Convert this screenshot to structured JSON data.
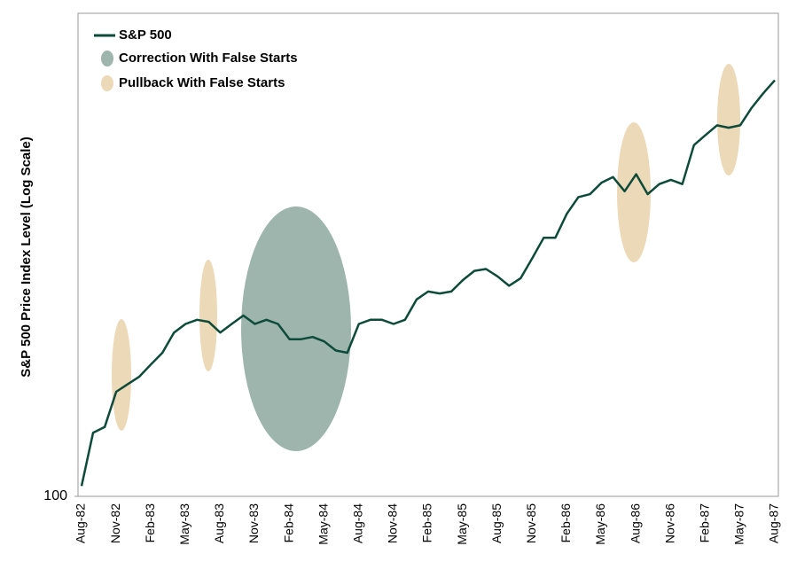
{
  "chart_data": {
    "type": "line",
    "log_scale": true,
    "y_label": "S&P 500 Price Index Level (Log Scale)",
    "categories": [
      "Aug-82",
      null,
      null,
      "Nov-82",
      null,
      null,
      "Feb-83",
      null,
      null,
      "May-83",
      null,
      null,
      "Aug-83",
      null,
      null,
      "Nov-83",
      null,
      null,
      "Feb-84",
      null,
      null,
      "May-84",
      null,
      null,
      "Aug-84",
      null,
      null,
      "Nov-84",
      null,
      null,
      "Feb-85",
      null,
      null,
      "May-85",
      null,
      null,
      "Aug-85",
      null,
      null,
      "Nov-85",
      null,
      null,
      "Feb-86",
      null,
      null,
      "May-86",
      null,
      null,
      "Aug-86",
      null,
      null,
      "Nov-86",
      null,
      null,
      "Feb-87",
      null,
      null,
      "May-87",
      null,
      null,
      "Aug-87"
    ],
    "series": [
      {
        "name": "S&P 500",
        "color": "#0d4a3a",
        "values": [
          103,
          120,
          122,
          135,
          138,
          141,
          146,
          151,
          160,
          164,
          166,
          165,
          160,
          164,
          168,
          164,
          166,
          164,
          157,
          157,
          158,
          156,
          152,
          151,
          164,
          166,
          166,
          164,
          166,
          176,
          180,
          179,
          180,
          186,
          191,
          192,
          188,
          183,
          187,
          198,
          210,
          210,
          225,
          236,
          238,
          246,
          250,
          240,
          252,
          238,
          245,
          248,
          245,
          274,
          282,
          290,
          288,
          290,
          305,
          318,
          330
        ]
      }
    ],
    "highlights": [
      {
        "name": "Correction With False Starts",
        "color": "#9db5ac"
      },
      {
        "name": "Pullback With False Starts",
        "color": "#ecd9b8"
      }
    ],
    "ylim": [
      100,
      400
    ],
    "yticks": [
      100
    ]
  }
}
